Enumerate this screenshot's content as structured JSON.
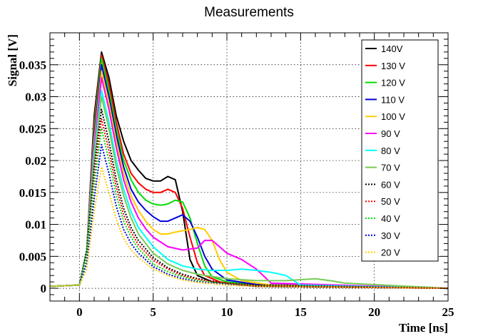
{
  "chart_data": {
    "type": "line",
    "title": "Measurements",
    "xlabel": "Time [ns]",
    "ylabel": "Signal [V]",
    "xlim": [
      -2,
      25
    ],
    "ylim": [
      -0.002,
      0.04
    ],
    "xticks": [
      0,
      5,
      10,
      15,
      20,
      25
    ],
    "xtick_labels": [
      "0",
      "5",
      "10",
      "15",
      "20",
      "25"
    ],
    "yticks": [
      0,
      0.005,
      0.01,
      0.015,
      0.02,
      0.025,
      0.03,
      0.035
    ],
    "ytick_labels": [
      "0",
      "0.005",
      "0.01",
      "0.015",
      "0.02",
      "0.025",
      "0.03",
      "0.035"
    ],
    "grid": true,
    "legend_position": "top-right",
    "series": [
      {
        "name": "140V",
        "color": "#000000",
        "dashed": false,
        "x": [
          -2,
          0,
          0.5,
          1.0,
          1.5,
          2.0,
          2.5,
          3.0,
          3.5,
          4.0,
          4.5,
          5.0,
          5.5,
          6.0,
          6.5,
          7.0,
          7.5,
          8.0,
          9.0,
          10.0,
          12.0,
          25.0
        ],
        "y": [
          0.0003,
          0.0005,
          0.006,
          0.027,
          0.037,
          0.033,
          0.027,
          0.023,
          0.02,
          0.0185,
          0.0172,
          0.0168,
          0.0168,
          0.0175,
          0.017,
          0.012,
          0.0045,
          0.002,
          0.001,
          0.0008,
          0.0003,
          0.0
        ]
      },
      {
        "name": "130 V",
        "color": "#ff0000",
        "dashed": false,
        "x": [
          -2,
          0,
          0.5,
          1.0,
          1.5,
          2.0,
          2.5,
          3.0,
          3.5,
          4.0,
          4.5,
          5.0,
          5.5,
          6.0,
          6.5,
          7.0,
          7.5,
          8.0,
          8.5,
          9.5,
          11.0,
          25.0
        ],
        "y": [
          0.0003,
          0.0005,
          0.006,
          0.026,
          0.0365,
          0.032,
          0.026,
          0.021,
          0.018,
          0.0165,
          0.0155,
          0.015,
          0.015,
          0.0155,
          0.015,
          0.0125,
          0.008,
          0.004,
          0.002,
          0.001,
          0.0005,
          0.0
        ]
      },
      {
        "name": "120 V",
        "color": "#00dd00",
        "dashed": false,
        "x": [
          -2,
          0,
          0.5,
          1.0,
          1.5,
          2.0,
          2.5,
          3.0,
          3.5,
          4.0,
          4.5,
          5.0,
          5.5,
          6.0,
          6.5,
          7.0,
          7.5,
          8.0,
          8.5,
          9.0,
          10.0,
          12.0,
          25.0
        ],
        "y": [
          0.0003,
          0.0005,
          0.006,
          0.025,
          0.036,
          0.031,
          0.025,
          0.02,
          0.017,
          0.015,
          0.0138,
          0.0132,
          0.013,
          0.0132,
          0.0138,
          0.0135,
          0.011,
          0.007,
          0.0035,
          0.0018,
          0.001,
          0.0005,
          0.0
        ]
      },
      {
        "name": "110 V",
        "color": "#0000dd",
        "dashed": false,
        "x": [
          -2,
          0,
          0.5,
          1.0,
          1.5,
          2.0,
          2.5,
          3.0,
          3.5,
          4.0,
          4.5,
          5.0,
          5.5,
          6.0,
          6.5,
          7.0,
          7.5,
          8.0,
          8.5,
          9.0,
          10.0,
          12.0,
          25.0
        ],
        "y": [
          0.0003,
          0.0005,
          0.006,
          0.024,
          0.035,
          0.03,
          0.024,
          0.019,
          0.0155,
          0.0135,
          0.0122,
          0.0112,
          0.0105,
          0.0105,
          0.011,
          0.0115,
          0.0105,
          0.008,
          0.005,
          0.003,
          0.0013,
          0.0006,
          0.0
        ]
      },
      {
        "name": "100 V",
        "color": "#ffcc00",
        "dashed": false,
        "x": [
          -2,
          0,
          0.5,
          1.0,
          1.5,
          2.0,
          2.5,
          3.0,
          3.5,
          4.0,
          4.5,
          5.0,
          5.5,
          6.0,
          6.5,
          7.0,
          7.5,
          8.0,
          8.5,
          9.0,
          9.5,
          10.0,
          11.0,
          13.0,
          25.0
        ],
        "y": [
          0.0003,
          0.0005,
          0.006,
          0.023,
          0.034,
          0.029,
          0.023,
          0.018,
          0.0145,
          0.0122,
          0.0105,
          0.0092,
          0.0085,
          0.0085,
          0.0088,
          0.009,
          0.0092,
          0.0095,
          0.0092,
          0.0075,
          0.0045,
          0.0025,
          0.0012,
          0.0005,
          0.0
        ]
      },
      {
        "name": "90 V",
        "color": "#ff00ff",
        "dashed": false,
        "x": [
          -2,
          0,
          0.5,
          1.0,
          1.5,
          2.0,
          2.5,
          3.0,
          3.5,
          4.0,
          4.5,
          5.0,
          6.0,
          7.0,
          8.0,
          8.5,
          9.0,
          9.5,
          10.0,
          11.0,
          12.0,
          13.0,
          25.0
        ],
        "y": [
          0.0003,
          0.0005,
          0.006,
          0.022,
          0.033,
          0.028,
          0.022,
          0.017,
          0.0135,
          0.011,
          0.0093,
          0.008,
          0.0065,
          0.006,
          0.0063,
          0.0075,
          0.0075,
          0.0065,
          0.0055,
          0.0045,
          0.003,
          0.0008,
          0.0
        ]
      },
      {
        "name": "80 V",
        "color": "#00ffff",
        "dashed": false,
        "x": [
          -2,
          0,
          0.5,
          1.0,
          1.5,
          2.0,
          2.5,
          3.0,
          3.5,
          4.0,
          4.5,
          5.0,
          6.0,
          7.0,
          8.0,
          9.0,
          10.0,
          11.0,
          12.0,
          13.0,
          14.0,
          15.0,
          25.0
        ],
        "y": [
          0.0003,
          0.0005,
          0.006,
          0.021,
          0.031,
          0.026,
          0.02,
          0.0155,
          0.012,
          0.0095,
          0.008,
          0.0065,
          0.0045,
          0.0035,
          0.003,
          0.0028,
          0.0028,
          0.003,
          0.0028,
          0.0025,
          0.002,
          0.0005,
          0.0
        ]
      },
      {
        "name": "70 V",
        "color": "#77cc55",
        "dashed": false,
        "x": [
          -2,
          0,
          0.5,
          1.0,
          1.5,
          2.0,
          2.5,
          3.0,
          3.5,
          4.0,
          4.5,
          5.0,
          6.0,
          7.0,
          8.0,
          10.0,
          12.0,
          14.0,
          16.0,
          17.0,
          18.0,
          25.0
        ],
        "y": [
          0.0003,
          0.0005,
          0.006,
          0.02,
          0.03,
          0.025,
          0.019,
          0.0145,
          0.011,
          0.0085,
          0.007,
          0.0055,
          0.0038,
          0.0028,
          0.0022,
          0.0015,
          0.0012,
          0.0012,
          0.0015,
          0.0012,
          0.0008,
          0.0
        ]
      },
      {
        "name": "60 V",
        "color": "#000000",
        "dashed": true,
        "x": [
          -2,
          0,
          0.5,
          1.0,
          1.5,
          2.0,
          2.5,
          3.0,
          3.5,
          4.0,
          5.0,
          6.0,
          7.0,
          8.0,
          10.0,
          12.0,
          25.0
        ],
        "y": [
          0.0003,
          0.0005,
          0.006,
          0.019,
          0.028,
          0.023,
          0.017,
          0.0125,
          0.0095,
          0.0075,
          0.0048,
          0.0032,
          0.0022,
          0.0015,
          0.0008,
          0.0005,
          0.0
        ]
      },
      {
        "name": "50 V",
        "color": "#ff0000",
        "dashed": true,
        "x": [
          -2,
          0,
          0.5,
          1.0,
          1.5,
          2.0,
          2.5,
          3.0,
          3.5,
          4.0,
          5.0,
          6.0,
          7.0,
          8.0,
          10.0,
          12.0,
          25.0
        ],
        "y": [
          0.0003,
          0.0005,
          0.005,
          0.017,
          0.0265,
          0.0215,
          0.0158,
          0.0115,
          0.0088,
          0.0068,
          0.0044,
          0.003,
          0.002,
          0.0014,
          0.0008,
          0.0004,
          0.0
        ]
      },
      {
        "name": "40 V",
        "color": "#00dd00",
        "dashed": true,
        "x": [
          -2,
          0,
          0.5,
          1.0,
          1.5,
          2.0,
          2.5,
          3.0,
          3.5,
          4.0,
          5.0,
          6.0,
          7.0,
          8.0,
          10.0,
          12.0,
          25.0
        ],
        "y": [
          0.0003,
          0.0005,
          0.005,
          0.016,
          0.025,
          0.02,
          0.0145,
          0.0105,
          0.008,
          0.0062,
          0.0038,
          0.0026,
          0.0018,
          0.0012,
          0.0007,
          0.0004,
          0.0
        ]
      },
      {
        "name": "30 V",
        "color": "#0000dd",
        "dashed": true,
        "x": [
          -2,
          0,
          0.5,
          1.0,
          1.5,
          2.0,
          2.5,
          3.0,
          3.5,
          4.0,
          5.0,
          6.0,
          7.0,
          8.0,
          10.0,
          12.0,
          25.0
        ],
        "y": [
          0.0003,
          0.0005,
          0.004,
          0.014,
          0.0225,
          0.018,
          0.0128,
          0.0092,
          0.007,
          0.0055,
          0.0034,
          0.0022,
          0.0015,
          0.001,
          0.0006,
          0.0003,
          0.0
        ]
      },
      {
        "name": "20 V",
        "color": "#ffcc00",
        "dashed": true,
        "x": [
          -2,
          0,
          0.5,
          1.0,
          1.5,
          2.0,
          2.5,
          3.0,
          3.5,
          4.0,
          5.0,
          6.0,
          7.0,
          8.0,
          10.0,
          12.0,
          25.0
        ],
        "y": [
          0.0003,
          0.0005,
          0.003,
          0.012,
          0.019,
          0.015,
          0.0108,
          0.0078,
          0.006,
          0.0048,
          0.003,
          0.002,
          0.0013,
          0.0009,
          0.0005,
          0.0003,
          0.0
        ]
      }
    ]
  }
}
